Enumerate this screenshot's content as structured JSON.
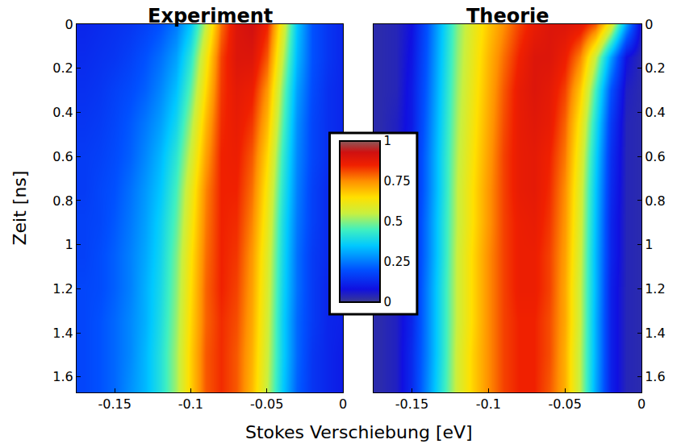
{
  "chart_data": {
    "type": "heatmap",
    "xlabel": "Stokes Verschiebung [eV]",
    "ylabel": "Zeit [ns]",
    "colorbar": {
      "range": [
        0,
        1
      ],
      "ticks": [
        0,
        0.25,
        0.5,
        0.75,
        1
      ]
    },
    "panels": [
      {
        "title": "Experiment",
        "xlim": [
          -0.175,
          0
        ],
        "xticks": [
          -0.15,
          -0.1,
          -0.05,
          0
        ],
        "ylim": [
          0,
          1.67
        ],
        "yticks": [
          0,
          0.2,
          0.4,
          0.6,
          0.8,
          1,
          1.2,
          1.4,
          1.6
        ],
        "x": [
          -0.17,
          -0.16,
          -0.15,
          -0.14,
          -0.13,
          -0.12,
          -0.11,
          -0.1,
          -0.09,
          -0.08,
          -0.07,
          -0.06,
          -0.05,
          -0.04,
          -0.03,
          -0.02,
          -0.01,
          0
        ],
        "y": [
          0,
          0.15,
          0.3,
          0.45,
          0.6,
          0.75,
          0.9,
          1.05,
          1.2,
          1.35,
          1.5,
          1.65
        ],
        "z": [
          [
            0.12,
            0.13,
            0.14,
            0.15,
            0.17,
            0.2,
            0.25,
            0.35,
            0.55,
            0.78,
            0.9,
            0.93,
            0.85,
            0.6,
            0.35,
            0.2,
            0.15,
            0.12
          ],
          [
            0.13,
            0.14,
            0.15,
            0.17,
            0.2,
            0.24,
            0.3,
            0.42,
            0.62,
            0.82,
            0.9,
            0.9,
            0.8,
            0.55,
            0.33,
            0.2,
            0.15,
            0.12
          ],
          [
            0.14,
            0.15,
            0.17,
            0.19,
            0.22,
            0.27,
            0.34,
            0.47,
            0.66,
            0.83,
            0.88,
            0.86,
            0.74,
            0.5,
            0.3,
            0.19,
            0.14,
            0.12
          ],
          [
            0.15,
            0.16,
            0.18,
            0.21,
            0.25,
            0.3,
            0.38,
            0.52,
            0.7,
            0.84,
            0.87,
            0.83,
            0.7,
            0.47,
            0.28,
            0.18,
            0.14,
            0.12
          ],
          [
            0.16,
            0.17,
            0.19,
            0.22,
            0.27,
            0.33,
            0.42,
            0.56,
            0.73,
            0.85,
            0.86,
            0.8,
            0.66,
            0.44,
            0.27,
            0.18,
            0.14,
            0.12
          ],
          [
            0.16,
            0.18,
            0.2,
            0.24,
            0.29,
            0.35,
            0.45,
            0.6,
            0.76,
            0.85,
            0.85,
            0.78,
            0.63,
            0.42,
            0.26,
            0.17,
            0.13,
            0.11
          ],
          [
            0.17,
            0.18,
            0.21,
            0.25,
            0.3,
            0.37,
            0.47,
            0.62,
            0.77,
            0.85,
            0.84,
            0.76,
            0.61,
            0.4,
            0.25,
            0.17,
            0.13,
            0.11
          ],
          [
            0.17,
            0.19,
            0.22,
            0.26,
            0.31,
            0.38,
            0.49,
            0.64,
            0.78,
            0.85,
            0.83,
            0.74,
            0.59,
            0.39,
            0.24,
            0.16,
            0.13,
            0.11
          ],
          [
            0.18,
            0.19,
            0.22,
            0.26,
            0.32,
            0.39,
            0.5,
            0.65,
            0.79,
            0.85,
            0.82,
            0.73,
            0.58,
            0.38,
            0.24,
            0.16,
            0.12,
            0.11
          ],
          [
            0.18,
            0.2,
            0.23,
            0.27,
            0.32,
            0.4,
            0.51,
            0.66,
            0.79,
            0.84,
            0.81,
            0.72,
            0.57,
            0.37,
            0.23,
            0.16,
            0.12,
            0.11
          ],
          [
            0.18,
            0.2,
            0.23,
            0.27,
            0.33,
            0.41,
            0.52,
            0.67,
            0.8,
            0.84,
            0.8,
            0.71,
            0.56,
            0.37,
            0.23,
            0.15,
            0.12,
            0.1
          ],
          [
            0.18,
            0.2,
            0.23,
            0.28,
            0.33,
            0.41,
            0.52,
            0.67,
            0.8,
            0.84,
            0.8,
            0.7,
            0.55,
            0.36,
            0.22,
            0.15,
            0.12,
            0.1
          ]
        ]
      },
      {
        "title": "Theorie",
        "xlim": [
          -0.175,
          0
        ],
        "xticks": [
          -0.15,
          -0.1,
          -0.05,
          0
        ],
        "ylim": [
          0,
          1.67
        ],
        "yticks": [
          0,
          0.2,
          0.4,
          0.6,
          0.8,
          1,
          1.2,
          1.4,
          1.6
        ],
        "x": [
          -0.17,
          -0.16,
          -0.15,
          -0.14,
          -0.13,
          -0.12,
          -0.11,
          -0.1,
          -0.09,
          -0.08,
          -0.07,
          -0.06,
          -0.05,
          -0.04,
          -0.03,
          -0.02,
          -0.01,
          0
        ],
        "y": [
          0,
          0.15,
          0.3,
          0.45,
          0.6,
          0.75,
          0.9,
          1.05,
          1.2,
          1.35,
          1.5,
          1.65
        ],
        "z": [
          [
            0.03,
            0.04,
            0.08,
            0.2,
            0.35,
            0.5,
            0.6,
            0.68,
            0.75,
            0.82,
            0.87,
            0.9,
            0.9,
            0.88,
            0.8,
            0.6,
            0.3,
            0.05
          ],
          [
            0.03,
            0.04,
            0.09,
            0.21,
            0.36,
            0.51,
            0.61,
            0.7,
            0.78,
            0.85,
            0.9,
            0.9,
            0.86,
            0.76,
            0.55,
            0.3,
            0.08,
            0.03
          ],
          [
            0.03,
            0.04,
            0.1,
            0.22,
            0.37,
            0.52,
            0.62,
            0.71,
            0.8,
            0.87,
            0.9,
            0.88,
            0.82,
            0.68,
            0.45,
            0.2,
            0.05,
            0.03
          ],
          [
            0.03,
            0.05,
            0.1,
            0.23,
            0.38,
            0.53,
            0.63,
            0.72,
            0.81,
            0.87,
            0.89,
            0.87,
            0.79,
            0.63,
            0.4,
            0.16,
            0.04,
            0.03
          ],
          [
            0.03,
            0.05,
            0.11,
            0.24,
            0.39,
            0.54,
            0.64,
            0.73,
            0.82,
            0.87,
            0.88,
            0.85,
            0.77,
            0.6,
            0.37,
            0.14,
            0.04,
            0.03
          ],
          [
            0.03,
            0.05,
            0.11,
            0.24,
            0.39,
            0.55,
            0.65,
            0.74,
            0.82,
            0.87,
            0.88,
            0.84,
            0.75,
            0.58,
            0.35,
            0.13,
            0.04,
            0.03
          ],
          [
            0.03,
            0.05,
            0.12,
            0.25,
            0.4,
            0.55,
            0.65,
            0.74,
            0.82,
            0.86,
            0.87,
            0.83,
            0.74,
            0.57,
            0.34,
            0.12,
            0.04,
            0.03
          ],
          [
            0.03,
            0.05,
            0.12,
            0.25,
            0.4,
            0.56,
            0.66,
            0.75,
            0.82,
            0.86,
            0.86,
            0.82,
            0.73,
            0.56,
            0.33,
            0.12,
            0.04,
            0.03
          ],
          [
            0.03,
            0.05,
            0.12,
            0.26,
            0.41,
            0.56,
            0.66,
            0.75,
            0.82,
            0.86,
            0.86,
            0.82,
            0.72,
            0.55,
            0.33,
            0.11,
            0.04,
            0.03
          ],
          [
            0.03,
            0.05,
            0.12,
            0.26,
            0.41,
            0.56,
            0.66,
            0.75,
            0.82,
            0.85,
            0.85,
            0.81,
            0.72,
            0.55,
            0.32,
            0.11,
            0.04,
            0.03
          ],
          [
            0.03,
            0.05,
            0.13,
            0.26,
            0.41,
            0.57,
            0.67,
            0.75,
            0.82,
            0.85,
            0.85,
            0.81,
            0.71,
            0.54,
            0.32,
            0.11,
            0.04,
            0.03
          ],
          [
            0.03,
            0.05,
            0.13,
            0.27,
            0.42,
            0.57,
            0.67,
            0.75,
            0.82,
            0.85,
            0.85,
            0.8,
            0.71,
            0.54,
            0.31,
            0.11,
            0.04,
            0.03
          ]
        ]
      }
    ]
  }
}
